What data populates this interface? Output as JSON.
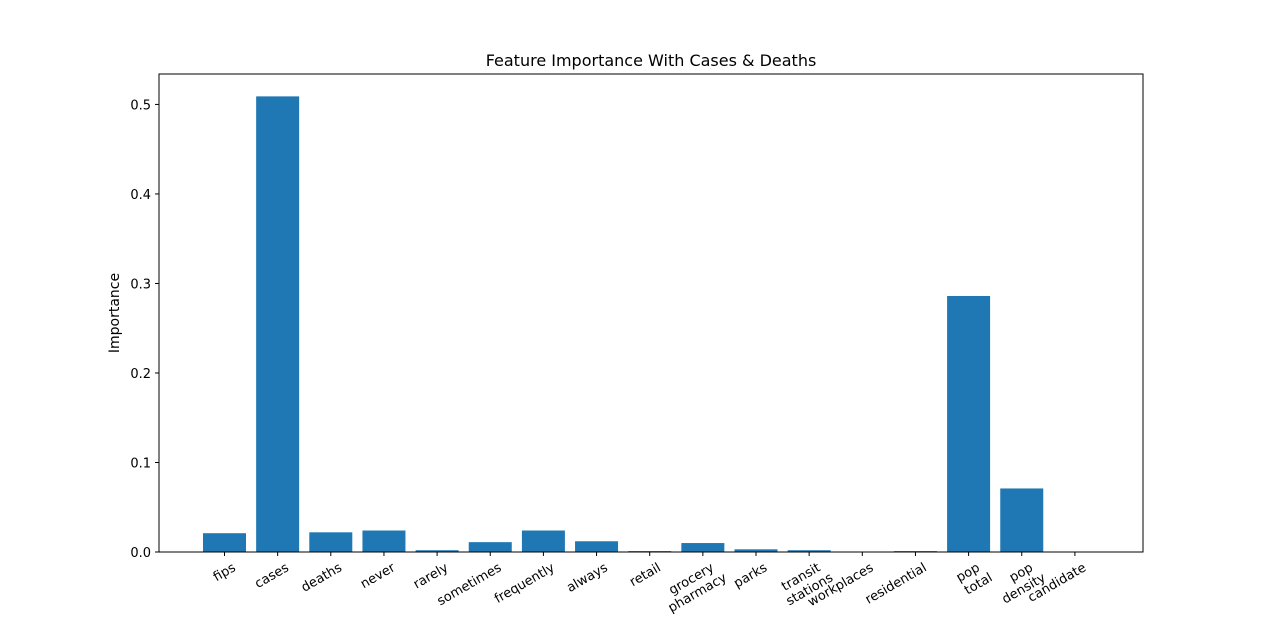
{
  "chart_data": {
    "type": "bar",
    "title": "Feature Importance With Cases & Deaths",
    "xlabel": "",
    "ylabel": "Importance",
    "categories": [
      [
        "fips"
      ],
      [
        "cases"
      ],
      [
        "deaths"
      ],
      [
        "never"
      ],
      [
        "rarely"
      ],
      [
        "sometimes"
      ],
      [
        "frequently"
      ],
      [
        "always"
      ],
      [
        "retail"
      ],
      [
        "grocery",
        "pharmacy"
      ],
      [
        "parks"
      ],
      [
        "transit",
        "stations"
      ],
      [
        "workplaces"
      ],
      [
        "residential"
      ],
      [
        "pop",
        "total"
      ],
      [
        "pop",
        "density"
      ],
      [
        "candidate"
      ]
    ],
    "values": [
      0.021,
      0.509,
      0.022,
      0.024,
      0.002,
      0.011,
      0.024,
      0.012,
      0.001,
      0.01,
      0.003,
      0.002,
      0.0,
      0.001,
      0.286,
      0.071,
      0.0
    ],
    "ylim": [
      0,
      0.534
    ],
    "yticks": [
      0.0,
      0.1,
      0.2,
      0.3,
      0.4,
      0.5
    ],
    "ytick_labels": [
      "0.0",
      "0.1",
      "0.2",
      "0.3",
      "0.4",
      "0.5"
    ],
    "xtick_rotation_deg": 30,
    "grid": false,
    "bar_color": "#1f77b4"
  }
}
